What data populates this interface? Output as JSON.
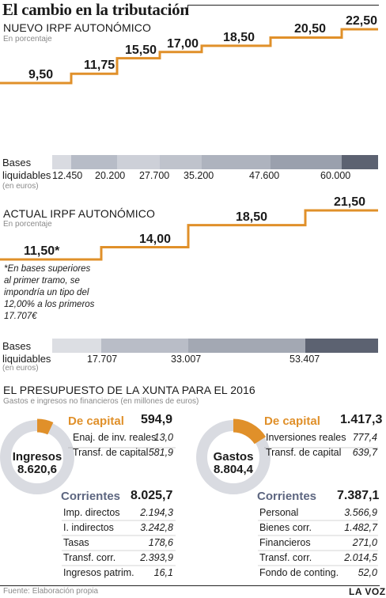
{
  "title": "El cambio en la tributación",
  "chart_data": [
    {
      "type": "line",
      "title": "NUEVO IRPF AUTONÓMICO",
      "subtitle": "En porcentaje",
      "x_label": "Bases liquidables",
      "x_unit": "(en euros)",
      "x_ticks": [
        "12.450",
        "20.200",
        "27.700",
        "35.200",
        "47.600",
        "60.000"
      ],
      "values": [
        9.5,
        11.75,
        15.5,
        17.0,
        18.5,
        20.5,
        22.5
      ],
      "value_labels": [
        "9,50",
        "11,75",
        "15,50",
        "17,00",
        "18,50",
        "20,50",
        "22,50"
      ],
      "band_colors": [
        "#d9dbe1",
        "#b7bcc7",
        "#cdd0d8",
        "#bfc3cc",
        "#aeb3be",
        "#9aa0ad",
        "#5c6271"
      ],
      "line_color": "#e0902a"
    },
    {
      "type": "line",
      "title": "ACTUAL IRPF AUTONÓMICO",
      "subtitle": "En porcentaje",
      "x_label": "Bases liquidables",
      "x_unit": "(en euros)",
      "x_ticks": [
        "17.707",
        "33.007",
        "53.407"
      ],
      "values": [
        11.5,
        14.0,
        18.5,
        21.5
      ],
      "value_labels": [
        "11,50*",
        "14,00",
        "18,50",
        "21,50"
      ],
      "note": [
        "*En bases superiores",
        "al primer tramo, se",
        "impondría un tipo del",
        "12,00% a los primeros",
        "17.707€"
      ],
      "band_colors": [
        "#dcdee3",
        "#b9bdc7",
        "#a3a8b3",
        "#5c6271"
      ],
      "line_color": "#e0902a"
    },
    {
      "type": "pie",
      "title": "EL PRESUPUESTO DE LA XUNTA PARA EL 2016",
      "subtitle": "Gastos e ingresos no financieros (en millones de euros)",
      "charts": [
        {
          "center_label": "Ingresos",
          "total": "8.620,6",
          "slices": [
            {
              "label": "De capital",
              "value": 594.9,
              "display": "594,9",
              "color": "#e0902a"
            },
            {
              "label": "Corrientes",
              "value": 8025.7,
              "display": "8.025,7",
              "color": "#d9dbe1"
            }
          ],
          "capital_items": [
            {
              "label": "Enaj. de inv. reales",
              "value": "13,0"
            },
            {
              "label": "Transf. de capital",
              "value": "581,9"
            }
          ],
          "current_items": [
            {
              "label": "Imp. directos",
              "value": "2.194,3"
            },
            {
              "label": "I. indirectos",
              "value": "3.242,8"
            },
            {
              "label": "Tasas",
              "value": "178,6"
            },
            {
              "label": "Transf. corr.",
              "value": "2.393,9"
            },
            {
              "label": "Ingresos patrim.",
              "value": "16,1"
            }
          ]
        },
        {
          "center_label": "Gastos",
          "total": "8.804,4",
          "slices": [
            {
              "label": "De capital",
              "value": 1417.3,
              "display": "1.417,3",
              "color": "#e0902a"
            },
            {
              "label": "Corrientes",
              "value": 7387.1,
              "display": "7.387,1",
              "color": "#d9dbe1"
            }
          ],
          "capital_items": [
            {
              "label": "Inversiones reales",
              "value": "777,4"
            },
            {
              "label": "Transf. de capital",
              "value": "639,7"
            }
          ],
          "current_items": [
            {
              "label": "Personal",
              "value": "3.566,9"
            },
            {
              "label": "Bienes corr.",
              "value": "1.482,7"
            },
            {
              "label": "Financieros",
              "value": "271,0"
            },
            {
              "label": "Transf. corr.",
              "value": "2.014,5"
            },
            {
              "label": "Fondo de conting.",
              "value": "52,0"
            }
          ]
        }
      ],
      "label_colors": {
        "capital": "#e0902a",
        "corrientes": "#5d6680"
      }
    }
  ],
  "footer": {
    "source": "Fuente: Elaboración propia",
    "brand": "LA VOZ"
  }
}
